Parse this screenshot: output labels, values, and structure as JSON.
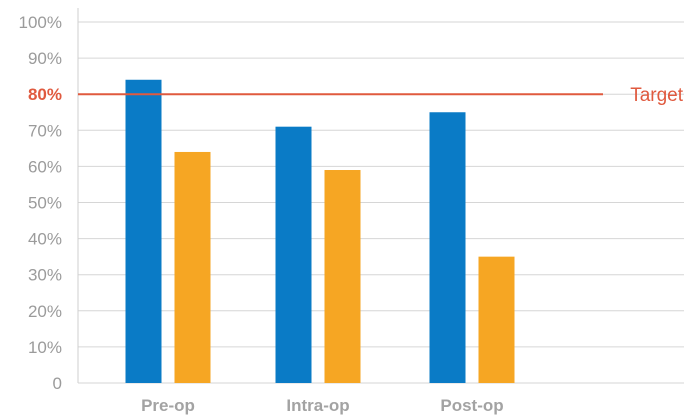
{
  "chart_data": {
    "type": "bar",
    "categories": [
      "Pre-op",
      "Intra-op",
      "Post-op"
    ],
    "series": [
      {
        "values": [
          84,
          71,
          75
        ],
        "color": "#0a7bc6"
      },
      {
        "values": [
          64,
          59,
          35
        ],
        "color": "#f6a623"
      }
    ],
    "ylim": [
      0,
      100
    ],
    "yticks": [
      "0",
      "10%",
      "20%",
      "30%",
      "40%",
      "50%",
      "60%",
      "70%",
      "80%",
      "90%",
      "100%"
    ],
    "highlighted_tick": "80%",
    "grid": true,
    "target": {
      "value": 80,
      "label": "Target",
      "color": "#e05a3f"
    }
  }
}
